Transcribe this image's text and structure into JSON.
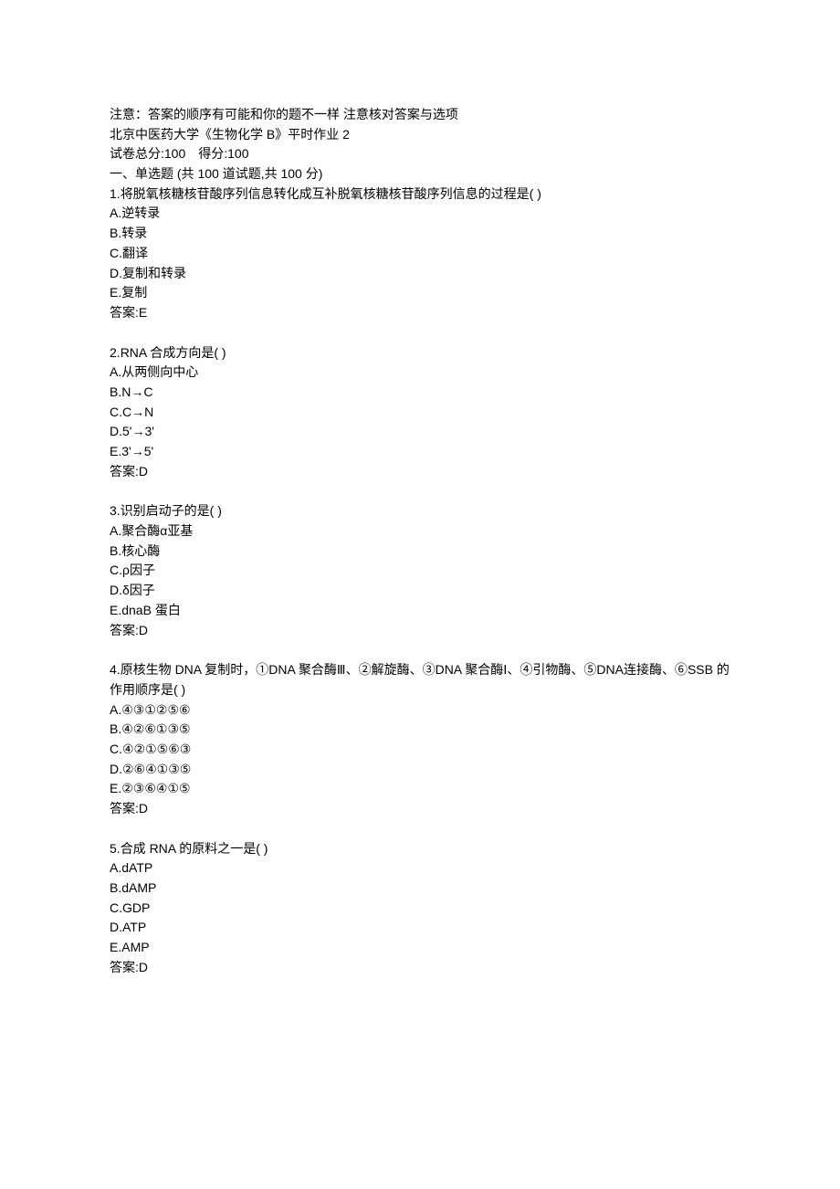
{
  "header": {
    "note": "注意：答案的顺序有可能和你的题不一样 注意核对答案与选项",
    "title": "北京中医药大学《生物化学 B》平时作业 2",
    "score_line": "试卷总分:100 得分:100",
    "section_title": "一、单选题 (共 100 道试题,共 100 分)"
  },
  "questions": [
    {
      "num": "1",
      "text": "将脱氧核糖核苷酸序列信息转化成互补脱氧核糖核苷酸序列信息的过程是( )",
      "options": [
        {
          "label": "A.",
          "text": "逆转录"
        },
        {
          "label": "B.",
          "text": "转录"
        },
        {
          "label": "C.",
          "text": "翻译"
        },
        {
          "label": "D.",
          "text": "复制和转录"
        },
        {
          "label": "E.",
          "text": "复制"
        }
      ],
      "answer_label": "答案:",
      "answer": "E"
    },
    {
      "num": "2",
      "text": "RNA 合成方向是( )",
      "options": [
        {
          "label": "A.",
          "text": "从两侧向中心"
        },
        {
          "label": "B.",
          "text": "N→C"
        },
        {
          "label": "C.",
          "text": "C→N"
        },
        {
          "label": "D.",
          "text": "5'→3'"
        },
        {
          "label": "E.",
          "text": "3'→5'"
        }
      ],
      "answer_label": "答案:",
      "answer": "D"
    },
    {
      "num": "3",
      "text": "识别启动子的是( )",
      "options": [
        {
          "label": "A.",
          "text": "聚合酶α亚基"
        },
        {
          "label": "B.",
          "text": "核心酶"
        },
        {
          "label": "C.",
          "text": "ρ因子"
        },
        {
          "label": "D.",
          "text": "δ因子"
        },
        {
          "label": "E.",
          "text": "dnaB 蛋白"
        }
      ],
      "answer_label": "答案:",
      "answer": "D"
    },
    {
      "num": "4",
      "text": "原核生物 DNA 复制时，①DNA 聚合酶Ⅲ、②解旋酶、③DNA 聚合酶Ⅰ、④引物酶、⑤DNA连接酶、⑥SSB 的作用顺序是( )",
      "options": [
        {
          "label": "A.",
          "text": "④③①②⑤⑥"
        },
        {
          "label": "B.",
          "text": "④②⑥①③⑤"
        },
        {
          "label": "C.",
          "text": "④②①⑤⑥③"
        },
        {
          "label": "D.",
          "text": "②⑥④①③⑤"
        },
        {
          "label": "E.",
          "text": "②③⑥④①⑤"
        }
      ],
      "answer_label": "答案:",
      "answer": "D"
    },
    {
      "num": "5",
      "text": "合成 RNA 的原料之一是( )",
      "options": [
        {
          "label": "A.",
          "text": "dATP"
        },
        {
          "label": "B.",
          "text": "dAMP"
        },
        {
          "label": "C.",
          "text": "GDP"
        },
        {
          "label": "D.",
          "text": "ATP"
        },
        {
          "label": "E.",
          "text": "AMP"
        }
      ],
      "answer_label": "答案:",
      "answer": "D"
    }
  ]
}
